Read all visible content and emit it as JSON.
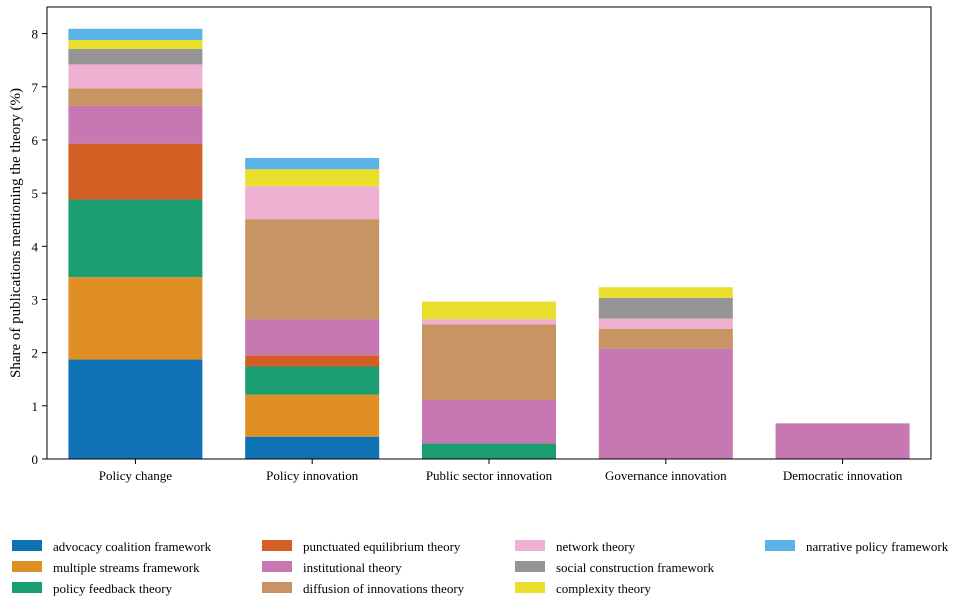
{
  "chart_data": {
    "type": "bar",
    "stacked": true,
    "title": "",
    "xlabel": "",
    "ylabel": "Share of publications mentioning the theory (%)",
    "ylim": [
      0,
      8.5
    ],
    "yticks": [
      0,
      1,
      2,
      3,
      4,
      5,
      6,
      7,
      8
    ],
    "categories": [
      "Policy change",
      "Policy innovation",
      "Public sector innovation",
      "Governance innovation",
      "Democratic innovation"
    ],
    "legend_position": "bottom",
    "series": [
      {
        "name": "advocacy coalition framework",
        "color": "#0f72b5",
        "values": [
          1.87,
          0.42,
          0,
          0,
          0
        ]
      },
      {
        "name": "multiple streams framework",
        "color": "#e08f24",
        "values": [
          1.55,
          0.79,
          0,
          0,
          0
        ]
      },
      {
        "name": "policy feedback theory",
        "color": "#1a9e70",
        "values": [
          1.46,
          0.53,
          0.29,
          0,
          0
        ]
      },
      {
        "name": "punctuated equilibrium theory",
        "color": "#d45f24",
        "values": [
          1.05,
          0.21,
          0,
          0,
          0
        ]
      },
      {
        "name": "institutional theory",
        "color": "#c778b2",
        "values": [
          0.71,
          0.68,
          0.82,
          2.08,
          0.67
        ]
      },
      {
        "name": "diffusion of innovations theory",
        "color": "#c99463",
        "values": [
          0.33,
          1.88,
          1.42,
          0.37,
          0
        ]
      },
      {
        "name": "network theory",
        "color": "#efb1d1",
        "values": [
          0.45,
          0.62,
          0.1,
          0.19,
          0
        ]
      },
      {
        "name": "social construction framework",
        "color": "#959595",
        "values": [
          0.29,
          0,
          0,
          0.39,
          0
        ]
      },
      {
        "name": "complexity theory",
        "color": "#e9df2c",
        "values": [
          0.17,
          0.32,
          0.33,
          0.2,
          0
        ]
      },
      {
        "name": "narrative policy framework",
        "color": "#5bb4e5",
        "values": [
          0.21,
          0.21,
          0,
          0,
          0
        ]
      }
    ]
  }
}
